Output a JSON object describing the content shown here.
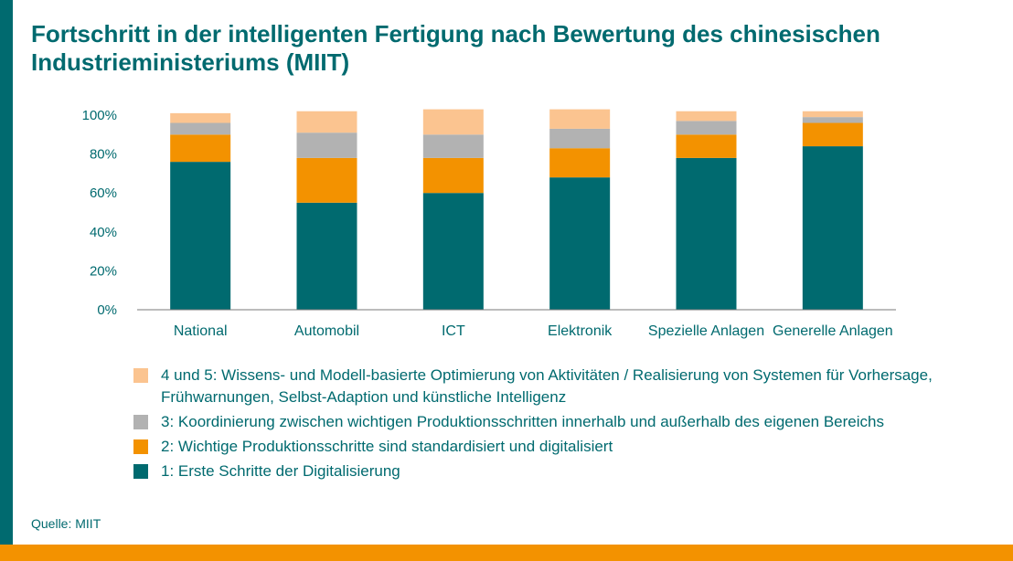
{
  "title": "Fortschritt in der intelligenten Fertigung nach Bewertung des chinesischen Industrieministeriums (MIIT)",
  "source": "Quelle: MIIT",
  "colors": {
    "teal": "#006a6f",
    "orange": "#f39200",
    "gray": "#b2b2b2",
    "peach": "#fbc490"
  },
  "chart_data": {
    "type": "bar",
    "stacked": true,
    "categories": [
      "National",
      "Automobil",
      "ICT",
      "Elektronik",
      "Spezielle Anlagen",
      "Generelle Anlagen"
    ],
    "ylim": [
      0,
      100
    ],
    "yticks": [
      "0%",
      "20%",
      "40%",
      "60%",
      "80%",
      "100%"
    ],
    "grid": false,
    "series": [
      {
        "name": "1: Erste Schritte der Digitalisierung",
        "color": "#006a6f",
        "values": [
          76,
          55,
          60,
          68,
          78,
          84
        ]
      },
      {
        "name": "2: Wichtige Produktionsschritte sind standardisiert und digitalisiert",
        "color": "#f39200",
        "values": [
          14,
          23,
          18,
          15,
          12,
          12
        ]
      },
      {
        "name": "3: Koordinierung zwischen wichtigen Produktionsschritten innerhalb und außerhalb des eigenen Bereichs",
        "color": "#b2b2b2",
        "values": [
          6,
          13,
          12,
          10,
          7,
          3
        ]
      },
      {
        "name": "4 und 5: Wissens- und Modell-basierte Optimierung von Aktivitäten / Realisierung von Systemen für Vorhersage, Frühwarnungen, Selbst-Adaption und künstliche Intelligenz",
        "color": "#fbc490",
        "values": [
          5,
          11,
          13,
          10,
          5,
          3
        ]
      }
    ],
    "legend": [
      "4 und 5: Wissens- und Modell-basierte Optimierung von Aktivitäten / Realisierung von Systemen für Vorhersage, Frühwarnungen, Selbst-Adaption und künstliche Intelligenz",
      "3: Koordinierung zwischen wichtigen Produktionsschritten innerhalb und außerhalb des eigenen Bereichs",
      "2: Wichtige Produktionsschritte sind standardisiert und digitalisiert",
      "1: Erste Schritte der Digitalisierung"
    ],
    "legend_position": "bottom"
  }
}
